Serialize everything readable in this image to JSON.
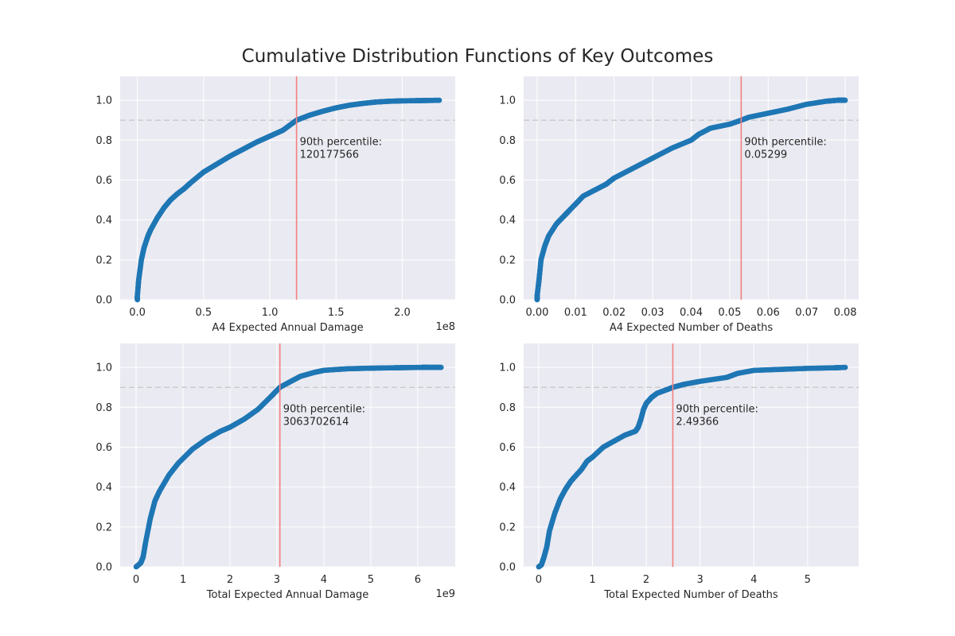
{
  "title": "Cumulative Distribution Functions of Key Outcomes",
  "colors": {
    "points": "#1f77b4",
    "percentile_line": "#f28080",
    "reference_line": "#cccccc",
    "axes_bg": "#eaeaf2",
    "grid": "#ffffff"
  },
  "chart_data": [
    {
      "type": "scatter",
      "xlabel": "A4 Expected Annual Damage",
      "ylabel": "",
      "x_scale_label": "1e8",
      "x_multiplier": 100000000,
      "xlim": [
        -13000000,
        240000000
      ],
      "ylim": [
        0,
        1.12
      ],
      "xticks": [
        0,
        0.5,
        1.0,
        1.5,
        2.0
      ],
      "xtick_labels": [
        "0.0",
        "0.5",
        "1.0",
        "1.5",
        "2.0"
      ],
      "yticks": [
        0,
        0.2,
        0.4,
        0.6,
        0.8,
        1.0
      ],
      "ytick_labels": [
        "0.0",
        "0.2",
        "0.4",
        "0.6",
        "0.8",
        "1.0"
      ],
      "grid": true,
      "reference_y": 0.9,
      "percentile_x": 120177566,
      "annotation": [
        "90th percentile:",
        "120177566"
      ],
      "cdf_x": [
        0,
        0,
        1000000,
        3000000,
        5000000,
        8000000,
        10000000,
        15000000,
        20000000,
        25000000,
        30000000,
        35000000,
        40000000,
        50000000,
        60000000,
        70000000,
        80000000,
        90000000,
        100000000,
        110000000,
        120177566,
        130000000,
        140000000,
        150000000,
        160000000,
        170000000,
        180000000,
        190000000,
        200000000,
        210000000,
        220000000,
        228000000
      ],
      "cdf_y": [
        0,
        0.02,
        0.1,
        0.2,
        0.26,
        0.32,
        0.35,
        0.41,
        0.46,
        0.5,
        0.53,
        0.555,
        0.585,
        0.64,
        0.68,
        0.72,
        0.755,
        0.79,
        0.82,
        0.85,
        0.9,
        0.925,
        0.945,
        0.962,
        0.975,
        0.984,
        0.991,
        0.995,
        0.997,
        0.998,
        0.999,
        1.0
      ]
    },
    {
      "type": "scatter",
      "xlabel": "A4 Expected Number of Deaths",
      "ylabel": "",
      "x_scale_label": "",
      "x_multiplier": 1,
      "xlim": [
        -0.0035,
        0.0835
      ],
      "ylim": [
        0,
        1.12
      ],
      "xticks": [
        0,
        0.01,
        0.02,
        0.03,
        0.04,
        0.05,
        0.06,
        0.07,
        0.08
      ],
      "xtick_labels": [
        "0.00",
        "0.01",
        "0.02",
        "0.03",
        "0.04",
        "0.05",
        "0.06",
        "0.07",
        "0.08"
      ],
      "yticks": [
        0,
        0.2,
        0.4,
        0.6,
        0.8,
        1.0
      ],
      "ytick_labels": [
        "0.0",
        "0.2",
        "0.4",
        "0.6",
        "0.8",
        "1.0"
      ],
      "grid": true,
      "reference_y": 0.9,
      "percentile_x": 0.05299,
      "annotation": [
        "90th percentile:",
        "0.05299"
      ],
      "cdf_x": [
        0,
        0,
        0.0005,
        0.001,
        0.002,
        0.003,
        0.005,
        0.007,
        0.008,
        0.01,
        0.012,
        0.015,
        0.018,
        0.02,
        0.025,
        0.03,
        0.035,
        0.04,
        0.042,
        0.045,
        0.05,
        0.05299,
        0.055,
        0.06,
        0.065,
        0.07,
        0.075,
        0.078,
        0.08
      ],
      "cdf_y": [
        0,
        0.02,
        0.1,
        0.2,
        0.27,
        0.32,
        0.38,
        0.42,
        0.44,
        0.48,
        0.52,
        0.55,
        0.58,
        0.61,
        0.66,
        0.71,
        0.76,
        0.8,
        0.83,
        0.86,
        0.88,
        0.9,
        0.915,
        0.935,
        0.955,
        0.98,
        0.995,
        1.0,
        1.0
      ]
    },
    {
      "type": "scatter",
      "xlabel": "Total Expected Annual Damage",
      "ylabel": "",
      "x_scale_label": "1e9",
      "x_multiplier": 1000000000,
      "xlim": [
        -340000000,
        6800000000
      ],
      "ylim": [
        0,
        1.12
      ],
      "xticks": [
        0,
        1,
        2,
        3,
        4,
        5,
        6
      ],
      "xtick_labels": [
        "0",
        "1",
        "2",
        "3",
        "4",
        "5",
        "6"
      ],
      "yticks": [
        0,
        0.2,
        0.4,
        0.6,
        0.8,
        1.0
      ],
      "ytick_labels": [
        "0.0",
        "0.2",
        "0.4",
        "0.6",
        "0.8",
        "1.0"
      ],
      "grid": true,
      "reference_y": 0.9,
      "percentile_x": 3063702614,
      "annotation": [
        "90th percentile:",
        "3063702614"
      ],
      "cdf_x": [
        0,
        100000000,
        150000000,
        200000000,
        300000000,
        400000000,
        500000000,
        700000000,
        900000000,
        1200000000,
        1500000000,
        1800000000,
        2000000000,
        2300000000,
        2600000000,
        2900000000,
        3063702614,
        3300000000,
        3500000000,
        3800000000,
        4000000000,
        4500000000,
        5000000000,
        5500000000,
        5800000000,
        6100000000,
        6200000000,
        6500000000
      ],
      "cdf_y": [
        0,
        0.02,
        0.05,
        0.12,
        0.24,
        0.33,
        0.38,
        0.46,
        0.52,
        0.59,
        0.64,
        0.68,
        0.7,
        0.74,
        0.79,
        0.86,
        0.9,
        0.93,
        0.955,
        0.975,
        0.985,
        0.993,
        0.996,
        0.998,
        0.999,
        1.0,
        1.0,
        1.0
      ]
    },
    {
      "type": "scatter",
      "xlabel": "Total Expected Number of Deaths",
      "ylabel": "",
      "x_scale_label": "",
      "x_multiplier": 1,
      "xlim": [
        -0.28,
        5.95
      ],
      "ylim": [
        0,
        1.12
      ],
      "xticks": [
        0,
        1,
        2,
        3,
        4,
        5
      ],
      "xtick_labels": [
        "0",
        "1",
        "2",
        "3",
        "4",
        "5"
      ],
      "yticks": [
        0,
        0.2,
        0.4,
        0.6,
        0.8,
        1.0
      ],
      "ytick_labels": [
        "0.0",
        "0.2",
        "0.4",
        "0.6",
        "0.8",
        "1.0"
      ],
      "grid": true,
      "reference_y": 0.9,
      "percentile_x": 2.49366,
      "annotation": [
        "90th percentile:",
        "2.49366"
      ],
      "cdf_x": [
        0,
        0.05,
        0.1,
        0.15,
        0.2,
        0.3,
        0.4,
        0.5,
        0.6,
        0.7,
        0.8,
        0.9,
        1.0,
        1.2,
        1.4,
        1.6,
        1.8,
        1.85,
        1.9,
        1.95,
        2.0,
        2.1,
        2.2,
        2.4,
        2.49366,
        2.7,
        3.0,
        3.5,
        3.7,
        4.0,
        4.5,
        5.0,
        5.5,
        5.7
      ],
      "cdf_y": [
        0,
        0.01,
        0.05,
        0.1,
        0.18,
        0.27,
        0.34,
        0.39,
        0.43,
        0.46,
        0.49,
        0.53,
        0.55,
        0.6,
        0.63,
        0.66,
        0.68,
        0.7,
        0.74,
        0.79,
        0.82,
        0.85,
        0.87,
        0.89,
        0.9,
        0.915,
        0.93,
        0.95,
        0.97,
        0.985,
        0.99,
        0.995,
        0.998,
        1.0
      ]
    }
  ]
}
